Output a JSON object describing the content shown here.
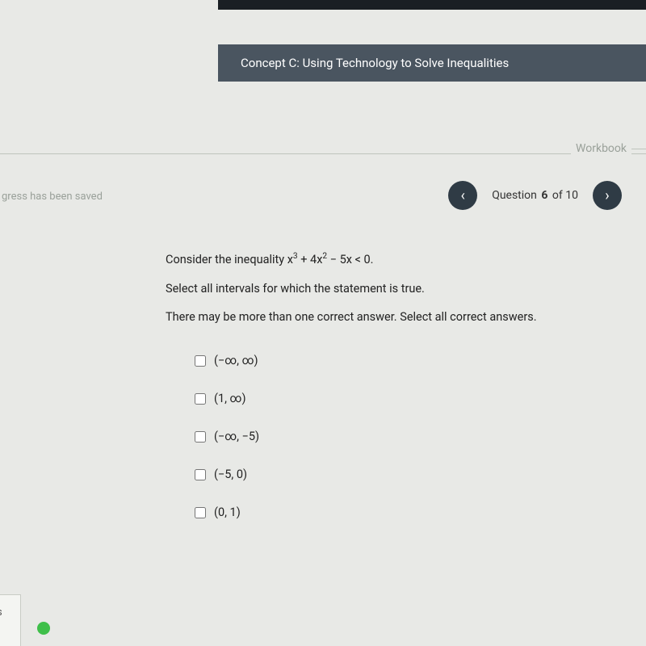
{
  "concept_banner": "Concept C: Using Technology to Solve Inequalities",
  "workbook_label": "Workbook",
  "progress_saved": "gress has been saved",
  "nav": {
    "prev_glyph": "‹",
    "next_glyph": "›",
    "question_word": "Question",
    "current": "6",
    "of_word": "of",
    "total": "10"
  },
  "question": {
    "line1_prefix": "Consider the inequality ",
    "line1_math_html": "x<sup>3</sup> + 4x<sup>2</sup> − 5x < 0.",
    "line2": "Select all intervals for which the statement is true.",
    "line3": "There may be more than one correct answer. Select all correct answers."
  },
  "options": [
    {
      "label": "(−∞, ∞)"
    },
    {
      "label": "(1, ∞)"
    },
    {
      "label": "(−∞, −5)"
    },
    {
      "label": "(−5, 0)"
    },
    {
      "label": "(0, 1)"
    }
  ],
  "bottom_left_letter": "s",
  "colors": {
    "banner_bg": "#4a5560",
    "nav_btn_bg": "#2f3b45",
    "status_dot": "#3fbf4a",
    "page_bg": "#e8e9e6"
  }
}
